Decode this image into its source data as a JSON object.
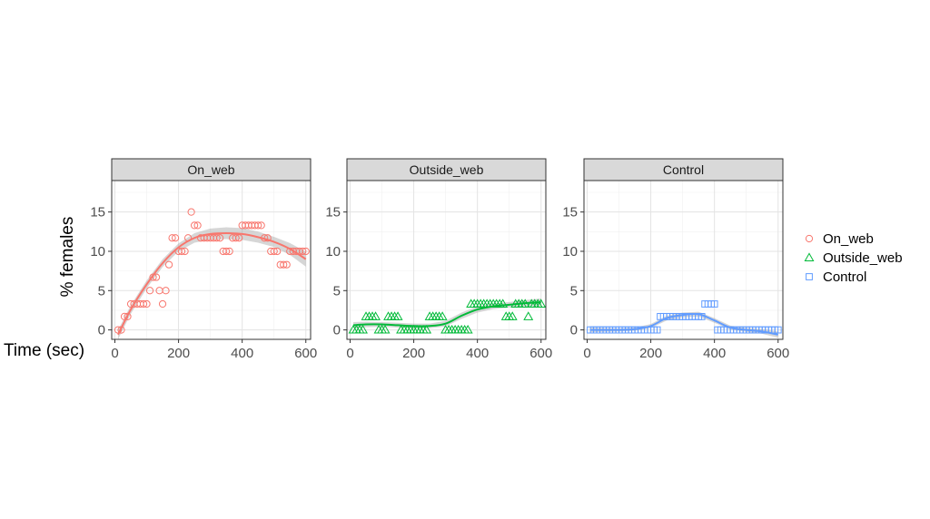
{
  "chart_data": {
    "type": "scatter",
    "title": "",
    "xlabel": "Time (sec)",
    "ylabel": "% females",
    "xlim": [
      -10,
      615
    ],
    "ylim": [
      -1.2,
      19
    ],
    "xticks": [
      0,
      200,
      400,
      600
    ],
    "yticks": [
      0,
      5,
      10,
      15
    ],
    "grid": true,
    "legend_position": "right",
    "legend": [
      {
        "label": "On_web",
        "color": "#F8766D",
        "shape": "circle"
      },
      {
        "label": "Outside_web",
        "color": "#00BA38",
        "shape": "triangle"
      },
      {
        "label": "Control",
        "color": "#619CFF",
        "shape": "square"
      }
    ],
    "panels": [
      {
        "strip": "On_web",
        "color": "#F8766D",
        "shape": "circle",
        "points": [
          [
            10,
            0
          ],
          [
            20,
            0
          ],
          [
            30,
            1.7
          ],
          [
            40,
            1.7
          ],
          [
            50,
            3.3
          ],
          [
            60,
            3.3
          ],
          [
            70,
            3.3
          ],
          [
            80,
            3.3
          ],
          [
            90,
            3.3
          ],
          [
            100,
            3.3
          ],
          [
            110,
            5
          ],
          [
            120,
            6.7
          ],
          [
            130,
            6.7
          ],
          [
            140,
            5
          ],
          [
            150,
            3.3
          ],
          [
            160,
            5
          ],
          [
            170,
            8.3
          ],
          [
            180,
            11.7
          ],
          [
            190,
            11.7
          ],
          [
            200,
            10
          ],
          [
            210,
            10
          ],
          [
            220,
            10
          ],
          [
            230,
            11.7
          ],
          [
            240,
            15
          ],
          [
            250,
            13.3
          ],
          [
            260,
            13.3
          ],
          [
            270,
            11.7
          ],
          [
            280,
            11.7
          ],
          [
            290,
            11.7
          ],
          [
            300,
            11.7
          ],
          [
            310,
            11.7
          ],
          [
            320,
            11.7
          ],
          [
            330,
            11.7
          ],
          [
            340,
            10
          ],
          [
            350,
            10
          ],
          [
            360,
            10
          ],
          [
            370,
            11.7
          ],
          [
            380,
            11.7
          ],
          [
            390,
            11.7
          ],
          [
            400,
            13.3
          ],
          [
            410,
            13.3
          ],
          [
            420,
            13.3
          ],
          [
            430,
            13.3
          ],
          [
            440,
            13.3
          ],
          [
            450,
            13.3
          ],
          [
            460,
            13.3
          ],
          [
            470,
            11.7
          ],
          [
            480,
            11.7
          ],
          [
            490,
            10
          ],
          [
            500,
            10
          ],
          [
            510,
            10
          ],
          [
            520,
            8.3
          ],
          [
            530,
            8.3
          ],
          [
            540,
            8.3
          ],
          [
            550,
            10
          ],
          [
            560,
            10
          ],
          [
            570,
            10
          ],
          [
            580,
            10
          ],
          [
            590,
            10
          ],
          [
            600,
            10
          ]
        ],
        "smooth": [
          [
            10,
            -0.6
          ],
          [
            50,
            2.6
          ],
          [
            100,
            5.8
          ],
          [
            150,
            8.5
          ],
          [
            200,
            10.5
          ],
          [
            250,
            11.7
          ],
          [
            300,
            12.2
          ],
          [
            350,
            12.3
          ],
          [
            400,
            12.2
          ],
          [
            450,
            11.8
          ],
          [
            500,
            11.2
          ],
          [
            550,
            10.3
          ],
          [
            600,
            9.0
          ]
        ],
        "se": [
          0.6,
          0.55,
          0.5,
          0.5,
          0.5,
          0.6,
          0.7,
          0.75,
          0.75,
          0.7,
          0.65,
          0.75,
          0.95
        ]
      },
      {
        "strip": "Outside_web",
        "color": "#00BA38",
        "shape": "triangle",
        "points": [
          [
            10,
            0
          ],
          [
            20,
            0
          ],
          [
            30,
            0
          ],
          [
            40,
            0
          ],
          [
            50,
            1.7
          ],
          [
            60,
            1.7
          ],
          [
            70,
            1.7
          ],
          [
            80,
            1.7
          ],
          [
            90,
            0
          ],
          [
            100,
            0
          ],
          [
            110,
            0
          ],
          [
            120,
            1.7
          ],
          [
            130,
            1.7
          ],
          [
            140,
            1.7
          ],
          [
            150,
            1.7
          ],
          [
            160,
            0
          ],
          [
            170,
            0
          ],
          [
            180,
            0
          ],
          [
            190,
            0
          ],
          [
            200,
            0
          ],
          [
            210,
            0
          ],
          [
            220,
            0
          ],
          [
            230,
            0
          ],
          [
            240,
            0
          ],
          [
            250,
            1.7
          ],
          [
            260,
            1.7
          ],
          [
            270,
            1.7
          ],
          [
            280,
            1.7
          ],
          [
            290,
            1.7
          ],
          [
            300,
            0
          ],
          [
            310,
            0
          ],
          [
            320,
            0
          ],
          [
            330,
            0
          ],
          [
            340,
            0
          ],
          [
            350,
            0
          ],
          [
            360,
            0
          ],
          [
            370,
            0
          ],
          [
            380,
            3.3
          ],
          [
            390,
            3.3
          ],
          [
            400,
            3.3
          ],
          [
            410,
            3.3
          ],
          [
            420,
            3.3
          ],
          [
            430,
            3.3
          ],
          [
            440,
            3.3
          ],
          [
            450,
            3.3
          ],
          [
            460,
            3.3
          ],
          [
            470,
            3.3
          ],
          [
            480,
            3.3
          ],
          [
            490,
            1.7
          ],
          [
            500,
            1.7
          ],
          [
            510,
            1.7
          ],
          [
            520,
            3.3
          ],
          [
            530,
            3.3
          ],
          [
            540,
            3.3
          ],
          [
            550,
            3.3
          ],
          [
            560,
            1.7
          ],
          [
            570,
            3.3
          ],
          [
            580,
            3.3
          ],
          [
            590,
            3.3
          ],
          [
            600,
            3.3
          ]
        ],
        "smooth": [
          [
            10,
            0.6
          ],
          [
            50,
            0.7
          ],
          [
            100,
            0.7
          ],
          [
            150,
            0.6
          ],
          [
            200,
            0.5
          ],
          [
            250,
            0.5
          ],
          [
            300,
            0.8
          ],
          [
            350,
            1.8
          ],
          [
            400,
            2.6
          ],
          [
            450,
            3.0
          ],
          [
            500,
            3.2
          ],
          [
            550,
            3.4
          ],
          [
            600,
            3.5
          ]
        ],
        "se": [
          0.4,
          0.35,
          0.3,
          0.3,
          0.3,
          0.3,
          0.35,
          0.4,
          0.4,
          0.35,
          0.35,
          0.4,
          0.5
        ]
      },
      {
        "strip": "Control",
        "color": "#619CFF",
        "shape": "square",
        "points": [
          [
            10,
            0
          ],
          [
            20,
            0
          ],
          [
            30,
            0
          ],
          [
            40,
            0
          ],
          [
            50,
            0
          ],
          [
            60,
            0
          ],
          [
            70,
            0
          ],
          [
            80,
            0
          ],
          [
            90,
            0
          ],
          [
            100,
            0
          ],
          [
            110,
            0
          ],
          [
            120,
            0
          ],
          [
            130,
            0
          ],
          [
            140,
            0
          ],
          [
            150,
            0
          ],
          [
            160,
            0
          ],
          [
            170,
            0
          ],
          [
            180,
            0
          ],
          [
            190,
            0
          ],
          [
            200,
            0
          ],
          [
            210,
            0
          ],
          [
            220,
            0
          ],
          [
            230,
            1.7
          ],
          [
            240,
            1.7
          ],
          [
            250,
            1.7
          ],
          [
            260,
            1.7
          ],
          [
            270,
            1.7
          ],
          [
            280,
            1.7
          ],
          [
            290,
            1.7
          ],
          [
            300,
            1.7
          ],
          [
            310,
            1.7
          ],
          [
            320,
            1.7
          ],
          [
            330,
            1.7
          ],
          [
            340,
            1.7
          ],
          [
            350,
            1.7
          ],
          [
            360,
            1.7
          ],
          [
            370,
            3.3
          ],
          [
            380,
            3.3
          ],
          [
            390,
            3.3
          ],
          [
            400,
            3.3
          ],
          [
            410,
            0
          ],
          [
            420,
            0
          ],
          [
            430,
            0
          ],
          [
            440,
            0
          ],
          [
            450,
            0
          ],
          [
            460,
            0
          ],
          [
            470,
            0
          ],
          [
            480,
            0
          ],
          [
            490,
            0
          ],
          [
            500,
            0
          ],
          [
            510,
            0
          ],
          [
            520,
            0
          ],
          [
            530,
            0
          ],
          [
            540,
            0
          ],
          [
            550,
            0
          ],
          [
            560,
            0
          ],
          [
            570,
            0
          ],
          [
            580,
            0
          ],
          [
            590,
            0
          ],
          [
            600,
            0
          ]
        ],
        "smooth": [
          [
            10,
            0
          ],
          [
            50,
            0
          ],
          [
            100,
            0
          ],
          [
            150,
            0.1
          ],
          [
            200,
            0.5
          ],
          [
            250,
            1.5
          ],
          [
            300,
            1.9
          ],
          [
            350,
            2.0
          ],
          [
            400,
            1.2
          ],
          [
            450,
            0.3
          ],
          [
            500,
            0
          ],
          [
            550,
            -0.2
          ],
          [
            600,
            -0.6
          ]
        ],
        "se": [
          0.3,
          0.25,
          0.2,
          0.2,
          0.25,
          0.3,
          0.3,
          0.3,
          0.3,
          0.25,
          0.25,
          0.3,
          0.4
        ]
      }
    ]
  }
}
